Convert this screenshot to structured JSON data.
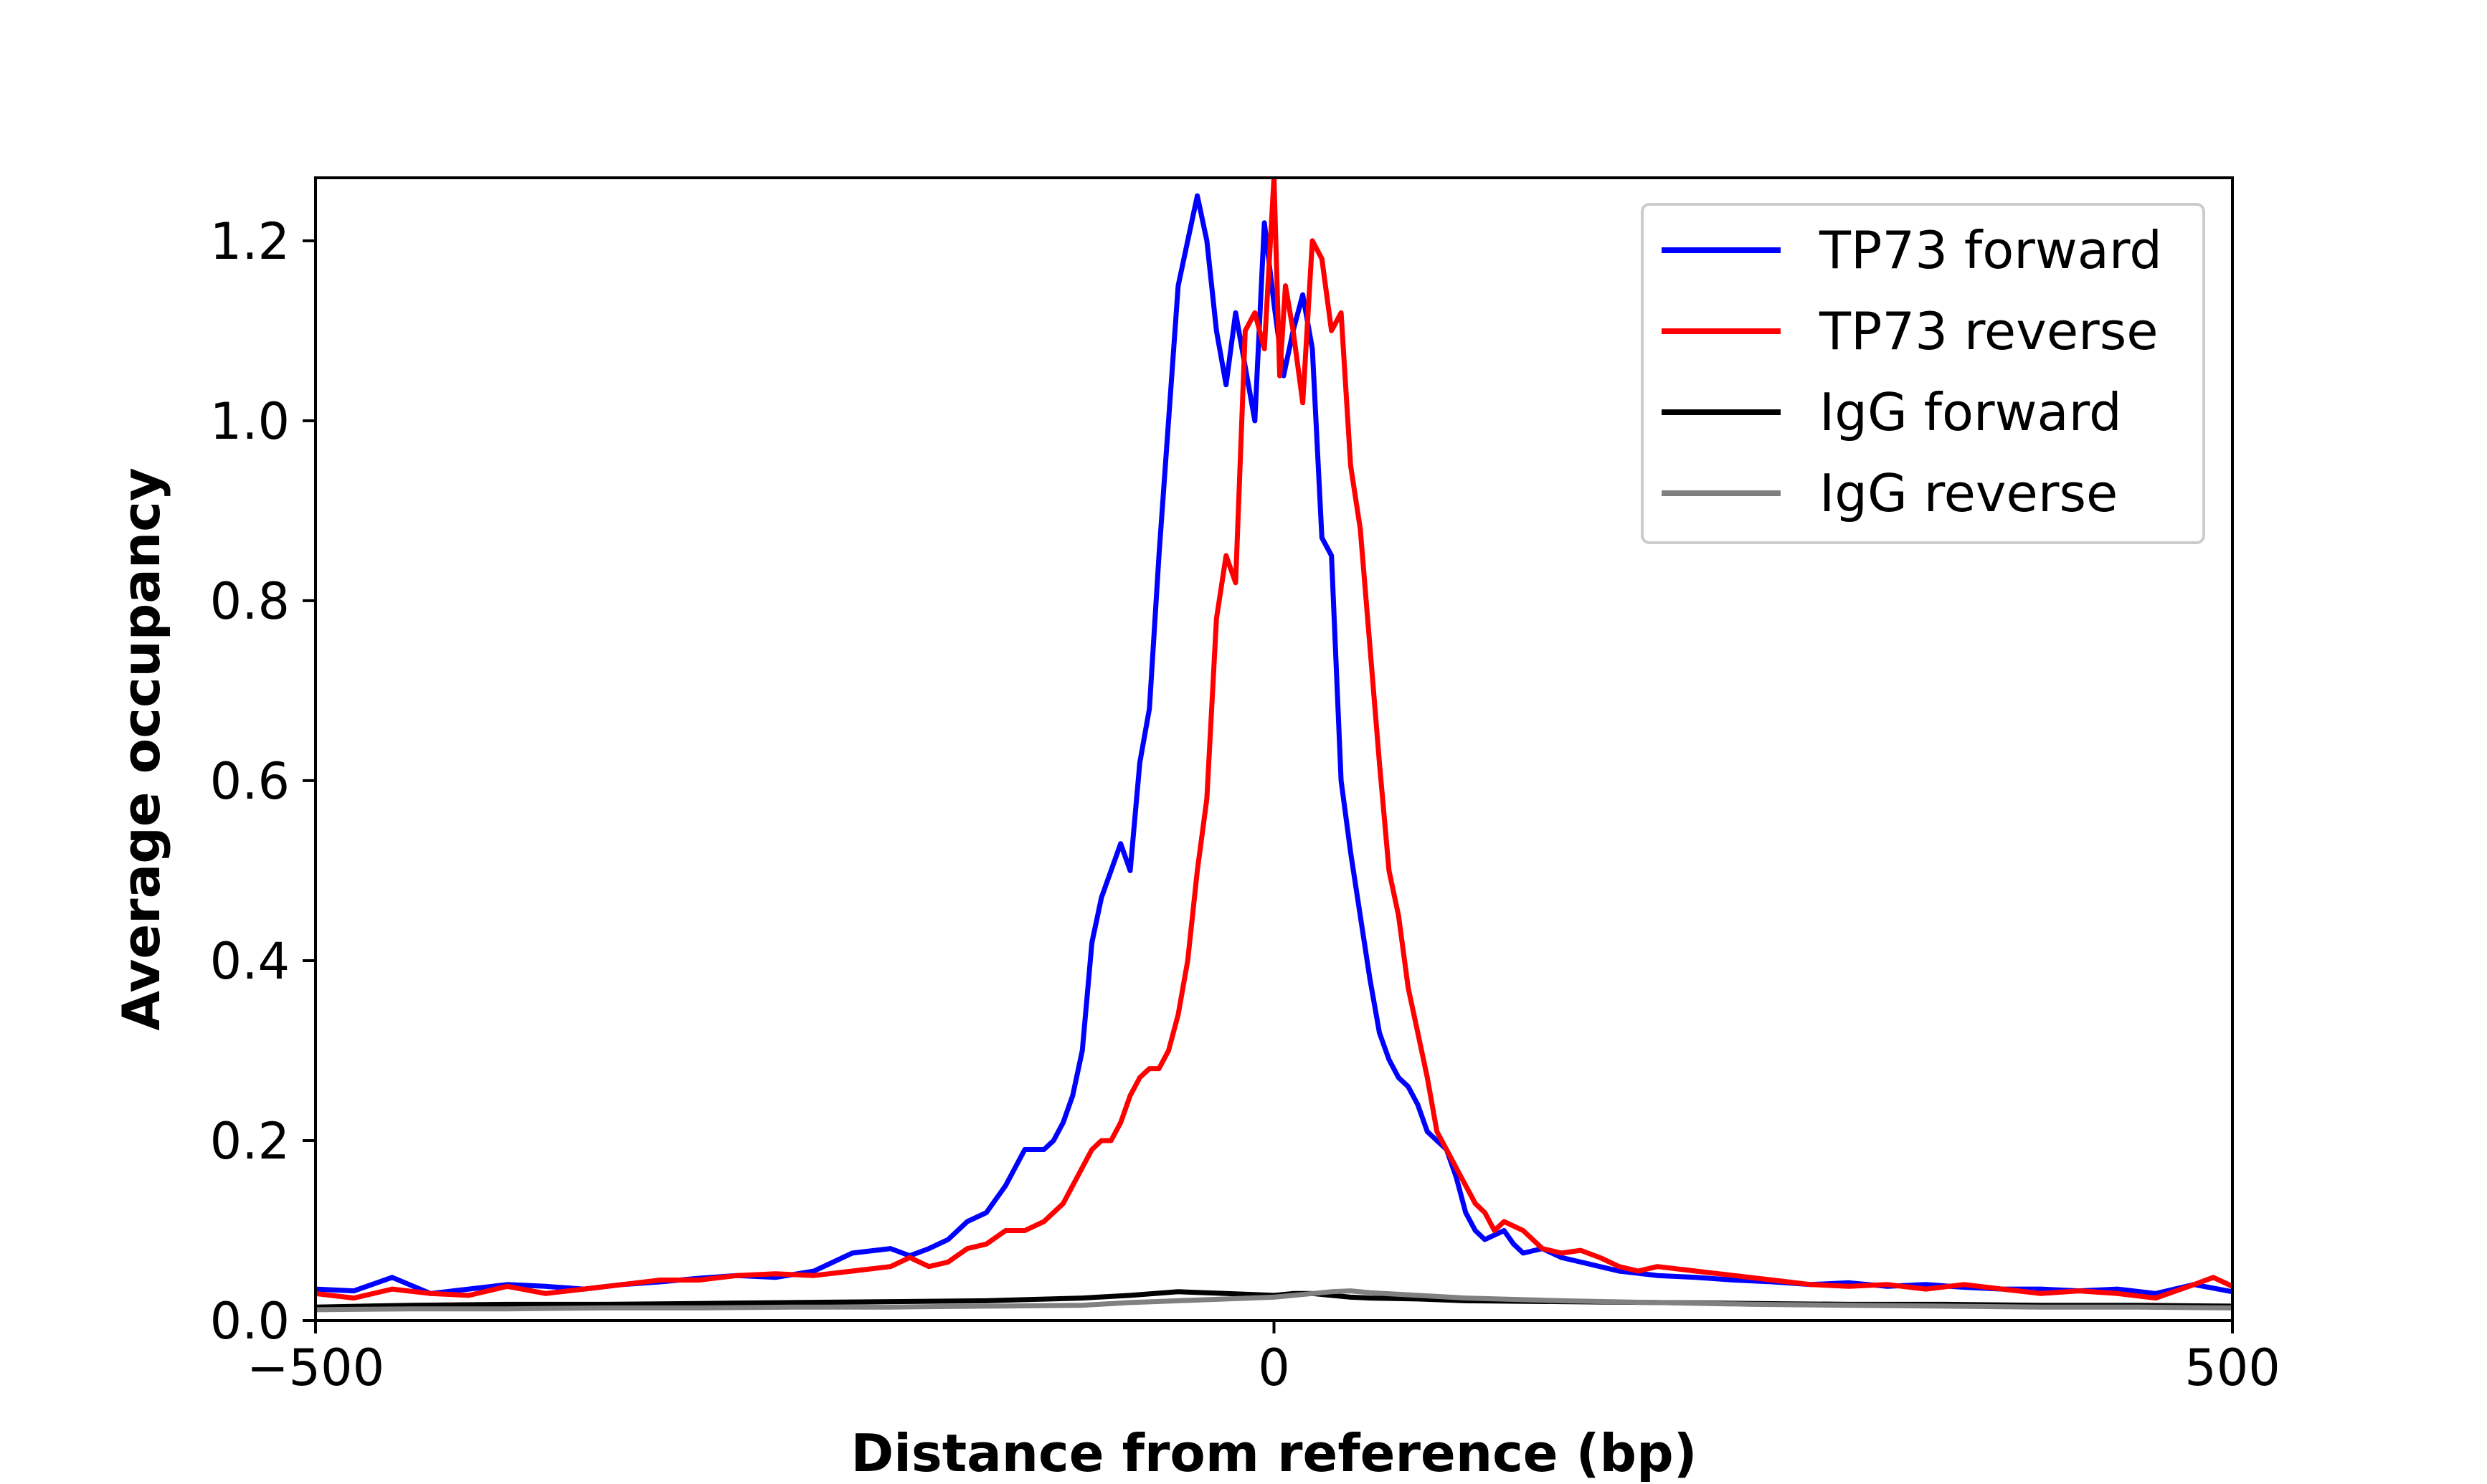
{
  "chart_data": {
    "type": "line",
    "title": "",
    "xlabel": "Distance from reference (bp)",
    "ylabel": "Average occupancy",
    "xlim": [
      -500,
      500
    ],
    "ylim": [
      0,
      1.27
    ],
    "xticks": [
      -500,
      0,
      500
    ],
    "xtick_labels": [
      "−500",
      "0",
      "500"
    ],
    "yticks": [
      0.0,
      0.2,
      0.4,
      0.6,
      0.8,
      1.0,
      1.2
    ],
    "ytick_labels": [
      "0.0",
      "0.2",
      "0.4",
      "0.6",
      "0.8",
      "1.0",
      "1.2"
    ],
    "grid": false,
    "legend_position": "top-right",
    "series": [
      {
        "name": "TP73 forward",
        "color": "#0000ff",
        "x": [
          -500,
          -480,
          -460,
          -440,
          -420,
          -400,
          -380,
          -360,
          -340,
          -320,
          -300,
          -280,
          -260,
          -240,
          -220,
          -200,
          -190,
          -180,
          -170,
          -160,
          -150,
          -140,
          -130,
          -125,
          -120,
          -115,
          -110,
          -105,
          -100,
          -95,
          -90,
          -85,
          -80,
          -75,
          -70,
          -65,
          -60,
          -55,
          -50,
          -45,
          -40,
          -35,
          -30,
          -25,
          -20,
          -15,
          -10,
          -5,
          0,
          5,
          10,
          15,
          20,
          25,
          30,
          35,
          40,
          45,
          50,
          55,
          60,
          65,
          70,
          75,
          80,
          85,
          90,
          95,
          100,
          105,
          110,
          115,
          120,
          125,
          130,
          140,
          150,
          160,
          170,
          180,
          200,
          220,
          240,
          260,
          280,
          300,
          320,
          340,
          360,
          380,
          400,
          420,
          440,
          460,
          480,
          500
        ],
        "y": [
          0.035,
          0.033,
          0.048,
          0.03,
          0.035,
          0.04,
          0.038,
          0.035,
          0.04,
          0.043,
          0.047,
          0.05,
          0.048,
          0.055,
          0.075,
          0.08,
          0.072,
          0.08,
          0.09,
          0.11,
          0.12,
          0.15,
          0.19,
          0.19,
          0.19,
          0.2,
          0.22,
          0.25,
          0.3,
          0.42,
          0.47,
          0.5,
          0.53,
          0.5,
          0.62,
          0.68,
          0.85,
          1.0,
          1.15,
          1.2,
          1.25,
          1.2,
          1.1,
          1.04,
          1.12,
          1.06,
          1.0,
          1.22,
          1.13,
          1.05,
          1.1,
          1.14,
          1.08,
          0.87,
          0.85,
          0.6,
          0.52,
          0.45,
          0.38,
          0.32,
          0.29,
          0.27,
          0.26,
          0.24,
          0.21,
          0.2,
          0.19,
          0.16,
          0.12,
          0.1,
          0.09,
          0.095,
          0.1,
          0.085,
          0.075,
          0.08,
          0.07,
          0.065,
          0.06,
          0.055,
          0.05,
          0.048,
          0.045,
          0.043,
          0.04,
          0.042,
          0.038,
          0.04,
          0.037,
          0.035,
          0.035,
          0.033,
          0.035,
          0.03,
          0.04,
          0.032
        ]
      },
      {
        "name": "TP73 reverse",
        "color": "#ff0000",
        "x": [
          -500,
          -480,
          -460,
          -440,
          -420,
          -400,
          -380,
          -360,
          -340,
          -320,
          -300,
          -280,
          -260,
          -240,
          -220,
          -200,
          -190,
          -180,
          -170,
          -160,
          -150,
          -140,
          -130,
          -120,
          -110,
          -100,
          -95,
          -90,
          -85,
          -80,
          -75,
          -70,
          -65,
          -60,
          -55,
          -50,
          -45,
          -40,
          -35,
          -30,
          -25,
          -20,
          -15,
          -10,
          -5,
          0,
          3,
          6,
          10,
          15,
          20,
          25,
          30,
          35,
          40,
          45,
          50,
          55,
          60,
          65,
          70,
          75,
          80,
          85,
          90,
          95,
          100,
          105,
          110,
          115,
          120,
          130,
          140,
          150,
          160,
          170,
          180,
          190,
          200,
          220,
          240,
          260,
          280,
          300,
          320,
          340,
          360,
          380,
          400,
          420,
          440,
          460,
          480,
          490,
          500
        ],
        "y": [
          0.03,
          0.025,
          0.035,
          0.03,
          0.028,
          0.038,
          0.03,
          0.035,
          0.04,
          0.045,
          0.045,
          0.05,
          0.052,
          0.05,
          0.055,
          0.06,
          0.07,
          0.06,
          0.065,
          0.08,
          0.085,
          0.1,
          0.1,
          0.11,
          0.13,
          0.17,
          0.19,
          0.2,
          0.2,
          0.22,
          0.25,
          0.27,
          0.28,
          0.28,
          0.3,
          0.34,
          0.4,
          0.5,
          0.58,
          0.78,
          0.85,
          0.82,
          1.1,
          1.12,
          1.08,
          1.27,
          1.05,
          1.15,
          1.1,
          1.02,
          1.2,
          1.18,
          1.1,
          1.12,
          0.95,
          0.88,
          0.75,
          0.62,
          0.5,
          0.45,
          0.37,
          0.32,
          0.27,
          0.21,
          0.19,
          0.17,
          0.15,
          0.13,
          0.12,
          0.1,
          0.11,
          0.1,
          0.08,
          0.075,
          0.078,
          0.07,
          0.06,
          0.055,
          0.06,
          0.055,
          0.05,
          0.045,
          0.04,
          0.038,
          0.04,
          0.035,
          0.04,
          0.035,
          0.03,
          0.033,
          0.03,
          0.025,
          0.04,
          0.048,
          0.038
        ]
      },
      {
        "name": "IgG forward",
        "color": "#000000",
        "x": [
          -500,
          -450,
          -400,
          -350,
          -300,
          -250,
          -200,
          -150,
          -100,
          -75,
          -50,
          -25,
          0,
          10,
          20,
          30,
          40,
          50,
          75,
          100,
          150,
          200,
          250,
          300,
          350,
          400,
          450,
          500
        ],
        "y": [
          0.015,
          0.017,
          0.018,
          0.018,
          0.019,
          0.02,
          0.021,
          0.022,
          0.025,
          0.028,
          0.032,
          0.03,
          0.028,
          0.03,
          0.03,
          0.028,
          0.026,
          0.025,
          0.024,
          0.022,
          0.021,
          0.02,
          0.019,
          0.018,
          0.018,
          0.017,
          0.017,
          0.016
        ]
      },
      {
        "name": "IgG reverse",
        "color": "#808080",
        "x": [
          -500,
          -450,
          -400,
          -350,
          -300,
          -250,
          -200,
          -150,
          -100,
          -75,
          -50,
          -25,
          0,
          10,
          20,
          30,
          40,
          50,
          75,
          100,
          150,
          200,
          250,
          300,
          350,
          400,
          450,
          500
        ],
        "y": [
          0.012,
          0.013,
          0.013,
          0.014,
          0.014,
          0.015,
          0.015,
          0.016,
          0.017,
          0.02,
          0.022,
          0.024,
          0.026,
          0.028,
          0.03,
          0.032,
          0.033,
          0.031,
          0.028,
          0.025,
          0.022,
          0.02,
          0.018,
          0.017,
          0.016,
          0.015,
          0.015,
          0.014
        ]
      }
    ]
  }
}
